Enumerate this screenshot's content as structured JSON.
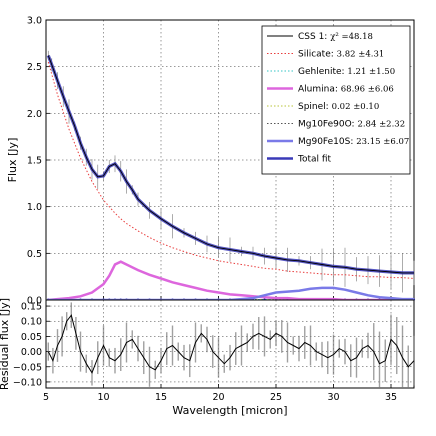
{
  "chart_data": [
    {
      "type": "line",
      "xlabel": "",
      "ylabel": "Flux [Jy]",
      "xlim": [
        5,
        37
      ],
      "ylim": [
        0,
        3.0
      ],
      "xticks": [
        5,
        10,
        15,
        20,
        25,
        30,
        35
      ],
      "yticks": [
        "0.0",
        "0.5",
        "1.0",
        "1.5",
        "2.0",
        "2.5",
        "3.0"
      ],
      "grid": true,
      "legend_position": "top-right",
      "observed": {
        "x": [
          5.2,
          5.5,
          6,
          6.5,
          7,
          7.5,
          8,
          8.5,
          9,
          9.5,
          10,
          10.5,
          11,
          11.5,
          12,
          12.5,
          13,
          14,
          15,
          16,
          17,
          18,
          19,
          20,
          21,
          22,
          23,
          24,
          25,
          26,
          27,
          28,
          29,
          30,
          31,
          32,
          33,
          34,
          35,
          36,
          37
        ],
        "y": [
          2.62,
          2.52,
          2.35,
          2.18,
          2.02,
          1.86,
          1.68,
          1.53,
          1.4,
          1.32,
          1.33,
          1.43,
          1.46,
          1.38,
          1.27,
          1.18,
          1.08,
          0.96,
          0.87,
          0.79,
          0.72,
          0.66,
          0.6,
          0.56,
          0.54,
          0.52,
          0.5,
          0.47,
          0.45,
          0.43,
          0.42,
          0.4,
          0.38,
          0.36,
          0.35,
          0.33,
          0.32,
          0.31,
          0.3,
          0.29,
          0.29
        ]
      },
      "components": {
        "x": [
          5.2,
          6,
          7,
          8,
          9,
          10,
          10.5,
          11,
          11.5,
          12,
          13,
          14,
          15,
          16,
          17,
          18,
          19,
          20,
          21,
          22,
          23,
          24,
          25,
          26,
          27,
          28,
          29,
          30,
          31,
          32,
          33,
          34,
          35,
          36,
          37
        ],
        "silicate": [
          2.55,
          2.2,
          1.83,
          1.52,
          1.27,
          1.07,
          1.0,
          0.93,
          0.87,
          0.82,
          0.74,
          0.67,
          0.61,
          0.56,
          0.52,
          0.48,
          0.45,
          0.42,
          0.4,
          0.38,
          0.36,
          0.34,
          0.33,
          0.31,
          0.3,
          0.29,
          0.28,
          0.27,
          0.27,
          0.26,
          0.25,
          0.25,
          0.24,
          0.24,
          0.23
        ],
        "alumina": [
          0.0,
          0.01,
          0.02,
          0.04,
          0.08,
          0.17,
          0.26,
          0.38,
          0.41,
          0.38,
          0.32,
          0.27,
          0.23,
          0.19,
          0.16,
          0.13,
          0.1,
          0.08,
          0.06,
          0.05,
          0.04,
          0.03,
          0.02,
          0.02,
          0.01,
          0.01,
          0.01,
          0.01,
          0.0,
          0.0,
          0.0,
          0.0,
          0.0,
          0.0,
          0.0
        ],
        "mg90fe10s": [
          0,
          0,
          0,
          0,
          0,
          0,
          0,
          0,
          0,
          0,
          0,
          0,
          0,
          0,
          0,
          0,
          0,
          0,
          0.0,
          0.01,
          0.02,
          0.05,
          0.08,
          0.09,
          0.1,
          0.12,
          0.13,
          0.13,
          0.11,
          0.08,
          0.05,
          0.03,
          0.02,
          0.01,
          0.01
        ]
      }
    },
    {
      "type": "line",
      "xlabel": "Wavelength [micron]",
      "ylabel": "Residual flux [Jy]",
      "xlim": [
        5,
        37
      ],
      "ylim": [
        -0.12,
        0.17
      ],
      "xticks": [
        5,
        10,
        15,
        20,
        25,
        30,
        35
      ],
      "yticks": [
        "−0.10",
        "−0.05",
        "0.00",
        "0.05",
        "0.10",
        "0.15"
      ],
      "grid": true,
      "residual": {
        "x": [
          5.2,
          5.6,
          6,
          6.4,
          6.8,
          7.2,
          7.6,
          8,
          8.5,
          9,
          9.5,
          10,
          10.5,
          11,
          11.5,
          12,
          12.5,
          13,
          13.5,
          14,
          14.5,
          15,
          15.5,
          16,
          16.5,
          17,
          17.5,
          18,
          18.5,
          19,
          19.5,
          20,
          20.5,
          21,
          21.5,
          22,
          22.5,
          23,
          23.5,
          24,
          24.5,
          25,
          25.5,
          26,
          26.5,
          27,
          27.5,
          28,
          28.5,
          29,
          29.5,
          30,
          30.5,
          31,
          31.5,
          32,
          32.5,
          33,
          33.5,
          34,
          34.5,
          35,
          35.5,
          36,
          36.5,
          37
        ],
        "y": [
          0.0,
          -0.03,
          0.02,
          0.05,
          0.1,
          0.12,
          0.06,
          0.0,
          -0.04,
          -0.07,
          -0.02,
          0.02,
          -0.02,
          -0.03,
          -0.01,
          0.03,
          0.04,
          0.01,
          -0.02,
          -0.05,
          -0.06,
          -0.03,
          0.01,
          0.02,
          0.0,
          -0.02,
          -0.03,
          0.03,
          0.06,
          0.04,
          0.0,
          -0.02,
          -0.04,
          -0.02,
          0.01,
          0.02,
          0.03,
          0.05,
          0.06,
          0.05,
          0.04,
          0.06,
          0.05,
          0.03,
          0.02,
          0.01,
          0.03,
          0.02,
          0.0,
          -0.01,
          -0.02,
          -0.01,
          0.01,
          0.0,
          -0.03,
          -0.02,
          0.01,
          0.02,
          0.0,
          -0.04,
          -0.03,
          0.04,
          0.02,
          -0.02,
          -0.05,
          -0.03
        ]
      }
    }
  ],
  "legend": [
    {
      "label": "CSS 1: ",
      "value": "χ² =48.18",
      "color": "#000000",
      "style": "solid",
      "width": 1
    },
    {
      "label": "Silicate: ",
      "value": "3.82 ±4.31",
      "color": "#e83c3c",
      "style": "dotted",
      "width": 1
    },
    {
      "label": "Gehlenite: ",
      "value": "1.21 ±1.50",
      "color": "#33c4c4",
      "style": "dotted",
      "width": 1
    },
    {
      "label": "Alumina: ",
      "value": "68.96 ±6.06",
      "color": "#dd66dd",
      "style": "solid",
      "width": 2.5
    },
    {
      "label": "Spinel: ",
      "value": "0.02 ±0.10",
      "color": "#b8c43a",
      "style": "dotted",
      "width": 1
    },
    {
      "label": "Mg10Fe90O: ",
      "value": "2.84 ±2.32",
      "color": "#555555",
      "style": "dotted",
      "width": 1
    },
    {
      "label": "Mg90Fe10S: ",
      "value": "23.15 ±6.07",
      "color": "#7a7ae8",
      "style": "solid",
      "width": 2.5
    },
    {
      "label": "Total fit",
      "value": "",
      "color": "#3a3ab8",
      "style": "solid",
      "width": 2.5
    }
  ]
}
